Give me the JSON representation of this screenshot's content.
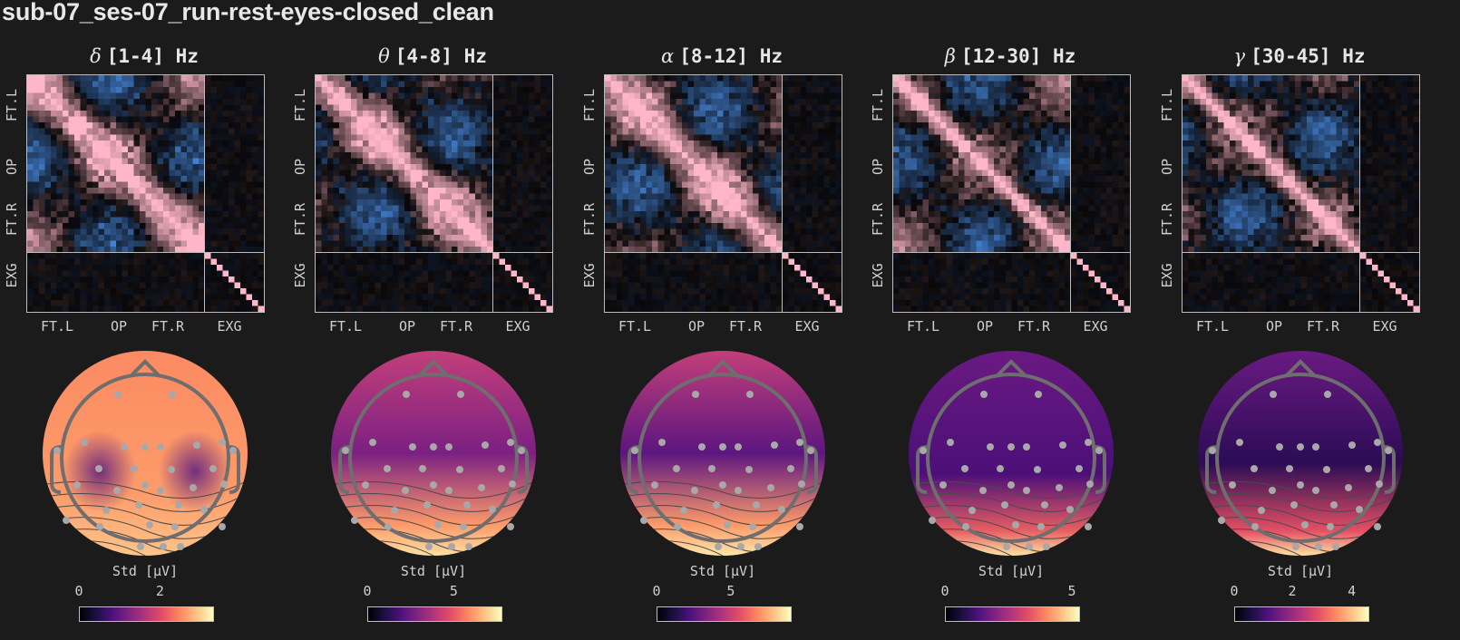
{
  "title": "sub-07_ses-07_run-rest-eyes-closed_clean",
  "chart_data": [
    {
      "type": "heatmap",
      "title": "δ [1-4] Hz",
      "symbol": "δ",
      "range": "[1-4] Hz",
      "xtick_labels": [
        "FT.L",
        "OP",
        "FT.R",
        "EXG"
      ],
      "ytick_labels": [
        "FT.L",
        "OP",
        "FT.R",
        "EXG"
      ],
      "grid_size": 40,
      "eeg_channels": 30,
      "exg_channels": 10,
      "colormap": "diverging blue-black-pink",
      "topomap": {
        "colorbar_label": "Std [μV]",
        "colorbar_ticks": [
          "0",
          "2"
        ],
        "tick_positions": [
          0.0,
          0.6
        ],
        "colormap": "magma",
        "pattern": "delta"
      }
    },
    {
      "type": "heatmap",
      "title": "θ [4-8] Hz",
      "symbol": "θ",
      "range": "[4-8] Hz",
      "xtick_labels": [
        "FT.L",
        "OP",
        "FT.R",
        "EXG"
      ],
      "ytick_labels": [
        "FT.L",
        "OP",
        "FT.R",
        "EXG"
      ],
      "grid_size": 40,
      "eeg_channels": 30,
      "exg_channels": 10,
      "colormap": "diverging blue-black-pink",
      "topomap": {
        "colorbar_label": "Std [μV]",
        "colorbar_ticks": [
          "0",
          "5"
        ],
        "tick_positions": [
          0.0,
          0.64
        ],
        "colormap": "magma",
        "pattern": "theta"
      }
    },
    {
      "type": "heatmap",
      "title": "α [8-12] Hz",
      "symbol": "α",
      "range": "[8-12] Hz",
      "xtick_labels": [
        "FT.L",
        "OP",
        "FT.R",
        "EXG"
      ],
      "ytick_labels": [
        "FT.L",
        "OP",
        "FT.R",
        "EXG"
      ],
      "grid_size": 40,
      "eeg_channels": 30,
      "exg_channels": 10,
      "colormap": "diverging blue-black-pink",
      "topomap": {
        "colorbar_label": "Std [μV]",
        "colorbar_ticks": [
          "0",
          "5"
        ],
        "tick_positions": [
          0.0,
          0.55
        ],
        "colormap": "magma",
        "pattern": "alpha"
      }
    },
    {
      "type": "heatmap",
      "title": "β [12-30] Hz",
      "symbol": "β",
      "range": "[12-30] Hz",
      "xtick_labels": [
        "FT.L",
        "OP",
        "FT.R",
        "EXG"
      ],
      "ytick_labels": [
        "FT.L",
        "OP",
        "FT.R",
        "EXG"
      ],
      "grid_size": 40,
      "eeg_channels": 30,
      "exg_channels": 10,
      "colormap": "diverging blue-black-pink",
      "topomap": {
        "colorbar_label": "Std [μV]",
        "colorbar_ticks": [
          "0",
          "5"
        ],
        "tick_positions": [
          0.0,
          0.94
        ],
        "colormap": "magma",
        "pattern": "beta"
      }
    },
    {
      "type": "heatmap",
      "title": "γ [30-45] Hz",
      "symbol": "γ",
      "range": "[30-45] Hz",
      "xtick_labels": [
        "FT.L",
        "OP",
        "FT.R",
        "EXG"
      ],
      "ytick_labels": [
        "FT.L",
        "OP",
        "FT.R",
        "EXG"
      ],
      "grid_size": 40,
      "eeg_channels": 30,
      "exg_channels": 10,
      "colormap": "diverging blue-black-pink",
      "topomap": {
        "colorbar_label": "Std [μV]",
        "colorbar_ticks": [
          "0",
          "2",
          "4"
        ],
        "tick_positions": [
          0.0,
          0.43,
          0.87
        ],
        "colormap": "magma",
        "pattern": "gamma"
      }
    }
  ],
  "colors": {
    "background": "#1b1b1b",
    "axis": "#bcbcbc",
    "text": "#d0d0d0",
    "positive": "#ffb6c8",
    "negative": "#4a8fe8",
    "head_outline": "#6e6e6e",
    "sensor": "#a8a8a8"
  }
}
